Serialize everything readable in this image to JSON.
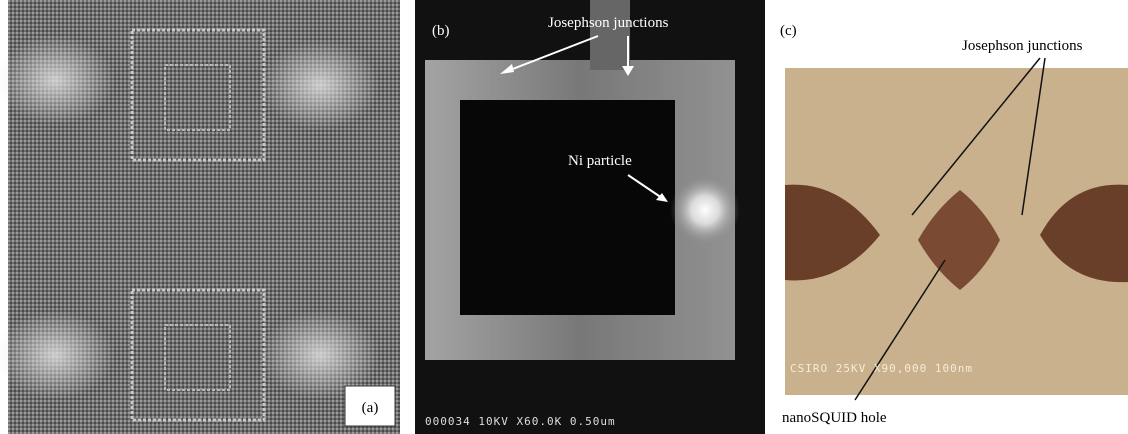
{
  "panels": [
    {
      "label": "(a)"
    },
    {
      "label": "(b)",
      "annotations": [
        "Josephson junctions",
        "Ni particle"
      ],
      "overlay": "000034 10KV X60.0K 0.50um"
    },
    {
      "label": "(c)",
      "annotations": [
        "Josephson junctions",
        "nanoSQUID hole"
      ],
      "overlay": "CSIRO 25KV X90,000 100nm"
    }
  ]
}
